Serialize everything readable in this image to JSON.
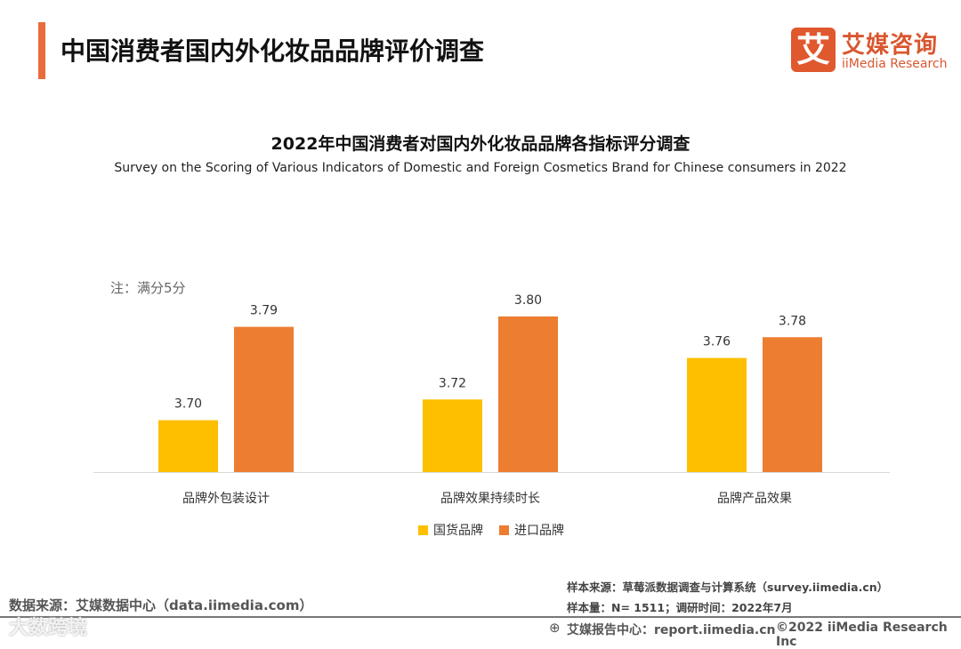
{
  "header": {
    "title": "中国消费者国内外化妆品品牌评价调查",
    "logo_mark": "艾",
    "logo_cn": "艾媒咨询",
    "logo_en": "iiMedia Research"
  },
  "note": "注：满分5分",
  "chart_data": {
    "type": "bar",
    "title": "2022年中国消费者对国内外化妆品品牌各指标评分调查",
    "subtitle": "Survey on the Scoring of Various Indicators of Domestic and Foreign Cosmetics Brand for Chinese consumers in 2022",
    "categories": [
      "品牌外包装设计",
      "品牌效果持续时长",
      "品牌产品效果"
    ],
    "series": [
      {
        "name": "国货品牌",
        "color": "#fdbf00",
        "values": [
          3.7,
          3.72,
          3.76
        ],
        "labels": [
          "3.70",
          "3.72",
          "3.76"
        ]
      },
      {
        "name": "进口品牌",
        "color": "#ed7d31",
        "values": [
          3.79,
          3.8,
          3.78
        ],
        "labels": [
          "3.79",
          "3.80",
          "3.78"
        ]
      }
    ],
    "ylim": [
      3.65,
      3.82
    ],
    "grid": false,
    "legend": "bottom"
  },
  "footer": {
    "source": "数据来源：艾媒数据中心（data.iimedia.com）",
    "sample_source": "样本来源：草莓派数据调查与计算系统（survey.iimedia.cn）",
    "sample_size": "样本量：N= 1511；调研时间：2022年7月",
    "report": "艾媒报告中心：report.iimedia.cn",
    "copyright": "©2022  iiMedia Research  Inc",
    "watermark": "大数跨境"
  }
}
